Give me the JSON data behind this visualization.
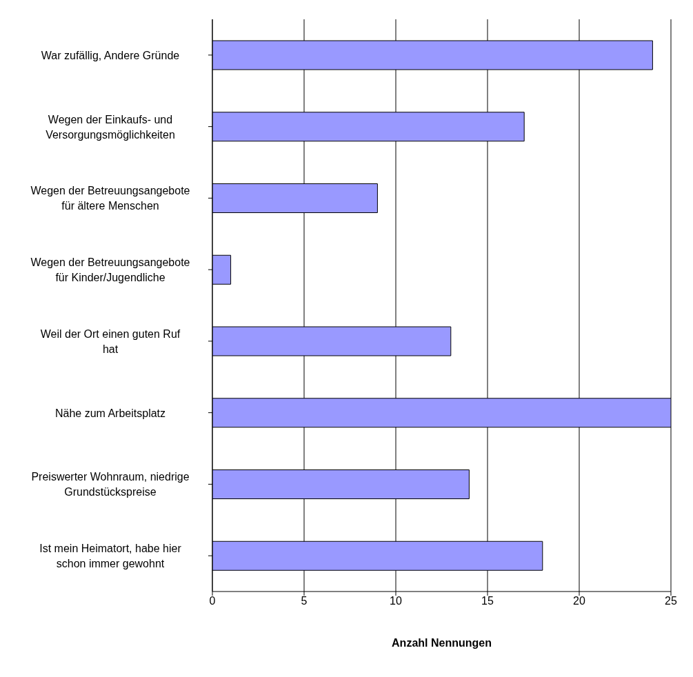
{
  "chart_data": {
    "type": "bar",
    "orientation": "horizontal",
    "xlabel": "Anzahl Nennungen",
    "categories": [
      "War zufällig, Andere Gründe",
      "Wegen der Einkaufs- und Versorgungsmöglichkeiten",
      "Wegen der Betreuungsangebote für ältere Menschen",
      "Wegen der Betreuungsangebote für Kinder/Jugendliche",
      "Weil der Ort einen guten Ruf hat",
      "Nähe zum Arbeitsplatz",
      "Preiswerter Wohnraum, niedrige Grundstückspreise",
      "Ist mein Heimatort, habe hier schon immer gewohnt"
    ],
    "values": [
      24,
      17,
      9,
      1,
      13,
      25,
      14,
      18
    ],
    "color": "#9999ff",
    "xlim": [
      0,
      25
    ],
    "xticks": [
      0,
      5,
      10,
      15,
      20,
      25
    ],
    "grid": "x",
    "legend": false
  }
}
